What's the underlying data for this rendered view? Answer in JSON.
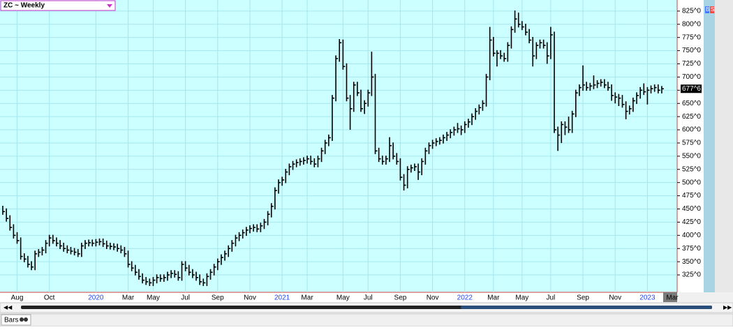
{
  "chart_data": {
    "type": "hlc",
    "title": "ZC ~ Weekly",
    "color": "#000000",
    "grid": true,
    "ylim": [
      292,
      846
    ],
    "yticks": [
      {
        "value": 325,
        "label": "325^0"
      },
      {
        "value": 350,
        "label": "350^0"
      },
      {
        "value": 375,
        "label": "375^0"
      },
      {
        "value": 400,
        "label": "400^0"
      },
      {
        "value": 425,
        "label": "425^0"
      },
      {
        "value": 450,
        "label": "450^0"
      },
      {
        "value": 475,
        "label": "475^0"
      },
      {
        "value": 500,
        "label": "500^0"
      },
      {
        "value": 525,
        "label": "525^0"
      },
      {
        "value": 550,
        "label": "550^0"
      },
      {
        "value": 575,
        "label": "575^0"
      },
      {
        "value": 600,
        "label": "600^0"
      },
      {
        "value": 625,
        "label": "625^0"
      },
      {
        "value": 650,
        "label": "650^0"
      },
      {
        "value": 675,
        "label": "675^0"
      },
      {
        "value": 700,
        "label": "700^0"
      },
      {
        "value": 725,
        "label": "725^0"
      },
      {
        "value": 750,
        "label": "750^0"
      },
      {
        "value": 775,
        "label": "775^0"
      },
      {
        "value": 800,
        "label": "800^0"
      },
      {
        "value": 825,
        "label": "825^0"
      }
    ],
    "last_price": {
      "value": 677.75,
      "label": "677^6"
    },
    "x_axis_edge_label": "Mar",
    "categories": [
      null,
      null,
      null,
      null,
      "Aug",
      null,
      null,
      null,
      null,
      null,
      null,
      null,
      null,
      "Oct",
      null,
      null,
      null,
      null,
      null,
      null,
      null,
      null,
      null,
      null,
      null,
      null,
      "2020",
      null,
      null,
      null,
      null,
      null,
      null,
      null,
      null,
      "Mar",
      null,
      null,
      null,
      null,
      null,
      null,
      "May",
      null,
      null,
      null,
      null,
      null,
      null,
      null,
      null,
      "Jul",
      null,
      null,
      null,
      null,
      null,
      null,
      null,
      null,
      "Sep",
      null,
      null,
      null,
      null,
      null,
      null,
      null,
      null,
      "Nov",
      null,
      null,
      null,
      null,
      null,
      null,
      null,
      null,
      "2021",
      null,
      null,
      null,
      null,
      null,
      null,
      "Mar",
      null,
      null,
      null,
      null,
      null,
      null,
      null,
      null,
      null,
      "May",
      null,
      null,
      null,
      null,
      null,
      null,
      "Jul",
      null,
      null,
      null,
      null,
      null,
      null,
      null,
      null,
      "Sep",
      null,
      null,
      null,
      null,
      null,
      null,
      null,
      null,
      "Nov",
      null,
      null,
      null,
      null,
      null,
      null,
      null,
      null,
      "2022",
      null,
      null,
      null,
      null,
      null,
      null,
      null,
      "Mar",
      null,
      null,
      null,
      null,
      null,
      null,
      null,
      "May",
      null,
      null,
      null,
      null,
      null,
      null,
      null,
      "Jul",
      null,
      null,
      null,
      null,
      null,
      null,
      null,
      null,
      "Sep",
      null,
      null,
      null,
      null,
      null,
      null,
      null,
      null,
      "Nov",
      null,
      null,
      null,
      null,
      null,
      null,
      null,
      null,
      "2023",
      null,
      null,
      null,
      null
    ],
    "high": [
      456,
      451,
      438,
      421,
      406,
      396,
      366,
      361,
      351,
      371,
      374,
      378,
      391,
      401,
      401,
      396,
      391,
      386,
      381,
      378,
      376,
      374,
      386,
      391,
      392,
      392,
      393,
      394,
      394,
      390,
      386,
      385,
      384,
      381,
      378,
      371,
      351,
      344,
      336,
      328,
      321,
      318,
      321,
      326,
      326,
      326,
      331,
      334,
      334,
      332,
      351,
      351,
      344,
      336,
      331,
      326,
      318,
      328,
      336,
      346,
      356,
      364,
      371,
      381,
      391,
      401,
      406,
      411,
      416,
      419,
      421,
      421,
      424,
      431,
      446,
      461,
      491,
      506,
      511,
      526,
      536,
      541,
      544,
      546,
      548,
      551,
      551,
      546,
      551,
      566,
      581,
      591,
      666,
      741,
      772,
      771,
      726,
      666,
      691,
      691,
      676,
      656,
      676,
      748,
      706,
      566,
      551,
      551,
      586,
      576,
      556,
      546,
      516,
      531,
      534,
      536,
      536,
      546,
      566,
      576,
      581,
      584,
      586,
      591,
      596,
      601,
      606,
      613,
      608,
      616,
      621,
      631,
      641,
      648,
      656,
      706,
      795,
      776,
      751,
      751,
      746,
      766,
      796,
      826,
      822,
      806,
      801,
      791,
      776,
      766,
      771,
      771,
      766,
      795,
      786,
      606,
      616,
      616,
      625,
      636,
      676,
      686,
      722,
      691,
      689,
      703,
      694,
      696,
      696,
      691,
      686,
      671,
      668,
      666,
      654,
      646,
      661,
      671,
      681,
      688,
      681,
      684,
      686,
      686,
      683
    ],
    "low": [
      439,
      426,
      409,
      394,
      384,
      354,
      349,
      339,
      334,
      334,
      359,
      362,
      366,
      379,
      384,
      379,
      374,
      369,
      366,
      364,
      362,
      359,
      359,
      374,
      379,
      379,
      379,
      381,
      378,
      374,
      373,
      372,
      369,
      366,
      359,
      339,
      332,
      324,
      316,
      309,
      306,
      304,
      304,
      309,
      312,
      312,
      314,
      319,
      320,
      314,
      314,
      332,
      324,
      319,
      314,
      306,
      304,
      304,
      316,
      324,
      334,
      344,
      352,
      359,
      369,
      379,
      389,
      394,
      399,
      404,
      407,
      406,
      406,
      412,
      419,
      434,
      449,
      479,
      494,
      499,
      514,
      524,
      529,
      532,
      534,
      536,
      534,
      529,
      529,
      539,
      554,
      569,
      579,
      654,
      729,
      714,
      654,
      600,
      634,
      664,
      634,
      630,
      644,
      664,
      554,
      539,
      534,
      534,
      539,
      544,
      534,
      504,
      485,
      489,
      519,
      522,
      505,
      514,
      534,
      554,
      564,
      569,
      572,
      574,
      579,
      584,
      589,
      594,
      590,
      594,
      604,
      609,
      619,
      629,
      636,
      644,
      694,
      739,
      720,
      734,
      729,
      729,
      754,
      784,
      794,
      789,
      779,
      764,
      720,
      734,
      754,
      754,
      725,
      734,
      594,
      560,
      575,
      590,
      594,
      594,
      624,
      664,
      674,
      674,
      674,
      677,
      679,
      682,
      679,
      674,
      655,
      650,
      645,
      642,
      620,
      629,
      634,
      649,
      659,
      666,
      648,
      669,
      672,
      669,
      669
    ],
    "close": [
      445,
      432,
      415,
      400,
      390,
      360,
      355,
      345,
      340,
      365,
      368,
      372,
      385,
      395,
      390,
      385,
      380,
      375,
      372,
      370,
      368,
      365,
      380,
      385,
      386,
      385,
      387,
      388,
      384,
      380,
      379,
      378,
      375,
      372,
      365,
      345,
      338,
      330,
      322,
      315,
      312,
      310,
      315,
      320,
      318,
      320,
      325,
      328,
      326,
      320,
      345,
      338,
      330,
      325,
      320,
      312,
      310,
      322,
      330,
      340,
      350,
      358,
      365,
      375,
      385,
      395,
      400,
      405,
      410,
      413,
      415,
      412,
      418,
      425,
      440,
      455,
      485,
      500,
      505,
      520,
      530,
      535,
      538,
      540,
      542,
      545,
      540,
      535,
      545,
      560,
      575,
      585,
      660,
      735,
      765,
      720,
      660,
      640,
      685,
      670,
      640,
      650,
      670,
      700,
      560,
      545,
      540,
      545,
      570,
      550,
      540,
      510,
      495,
      525,
      528,
      530,
      520,
      540,
      560,
      570,
      575,
      578,
      580,
      585,
      590,
      595,
      600,
      602,
      600,
      610,
      615,
      625,
      635,
      642,
      650,
      700,
      770,
      745,
      745,
      740,
      735,
      760,
      790,
      810,
      800,
      795,
      785,
      770,
      740,
      760,
      765,
      760,
      740,
      780,
      600,
      590,
      610,
      605,
      600,
      630,
      670,
      680,
      685,
      680,
      683,
      685,
      688,
      690,
      685,
      680,
      665,
      662,
      660,
      648,
      635,
      640,
      655,
      665,
      675,
      672,
      675,
      678,
      680,
      675,
      677.75
    ]
  },
  "ui": {
    "bottom_label": "Bars",
    "buy_button": "B",
    "sell_button": "S"
  }
}
